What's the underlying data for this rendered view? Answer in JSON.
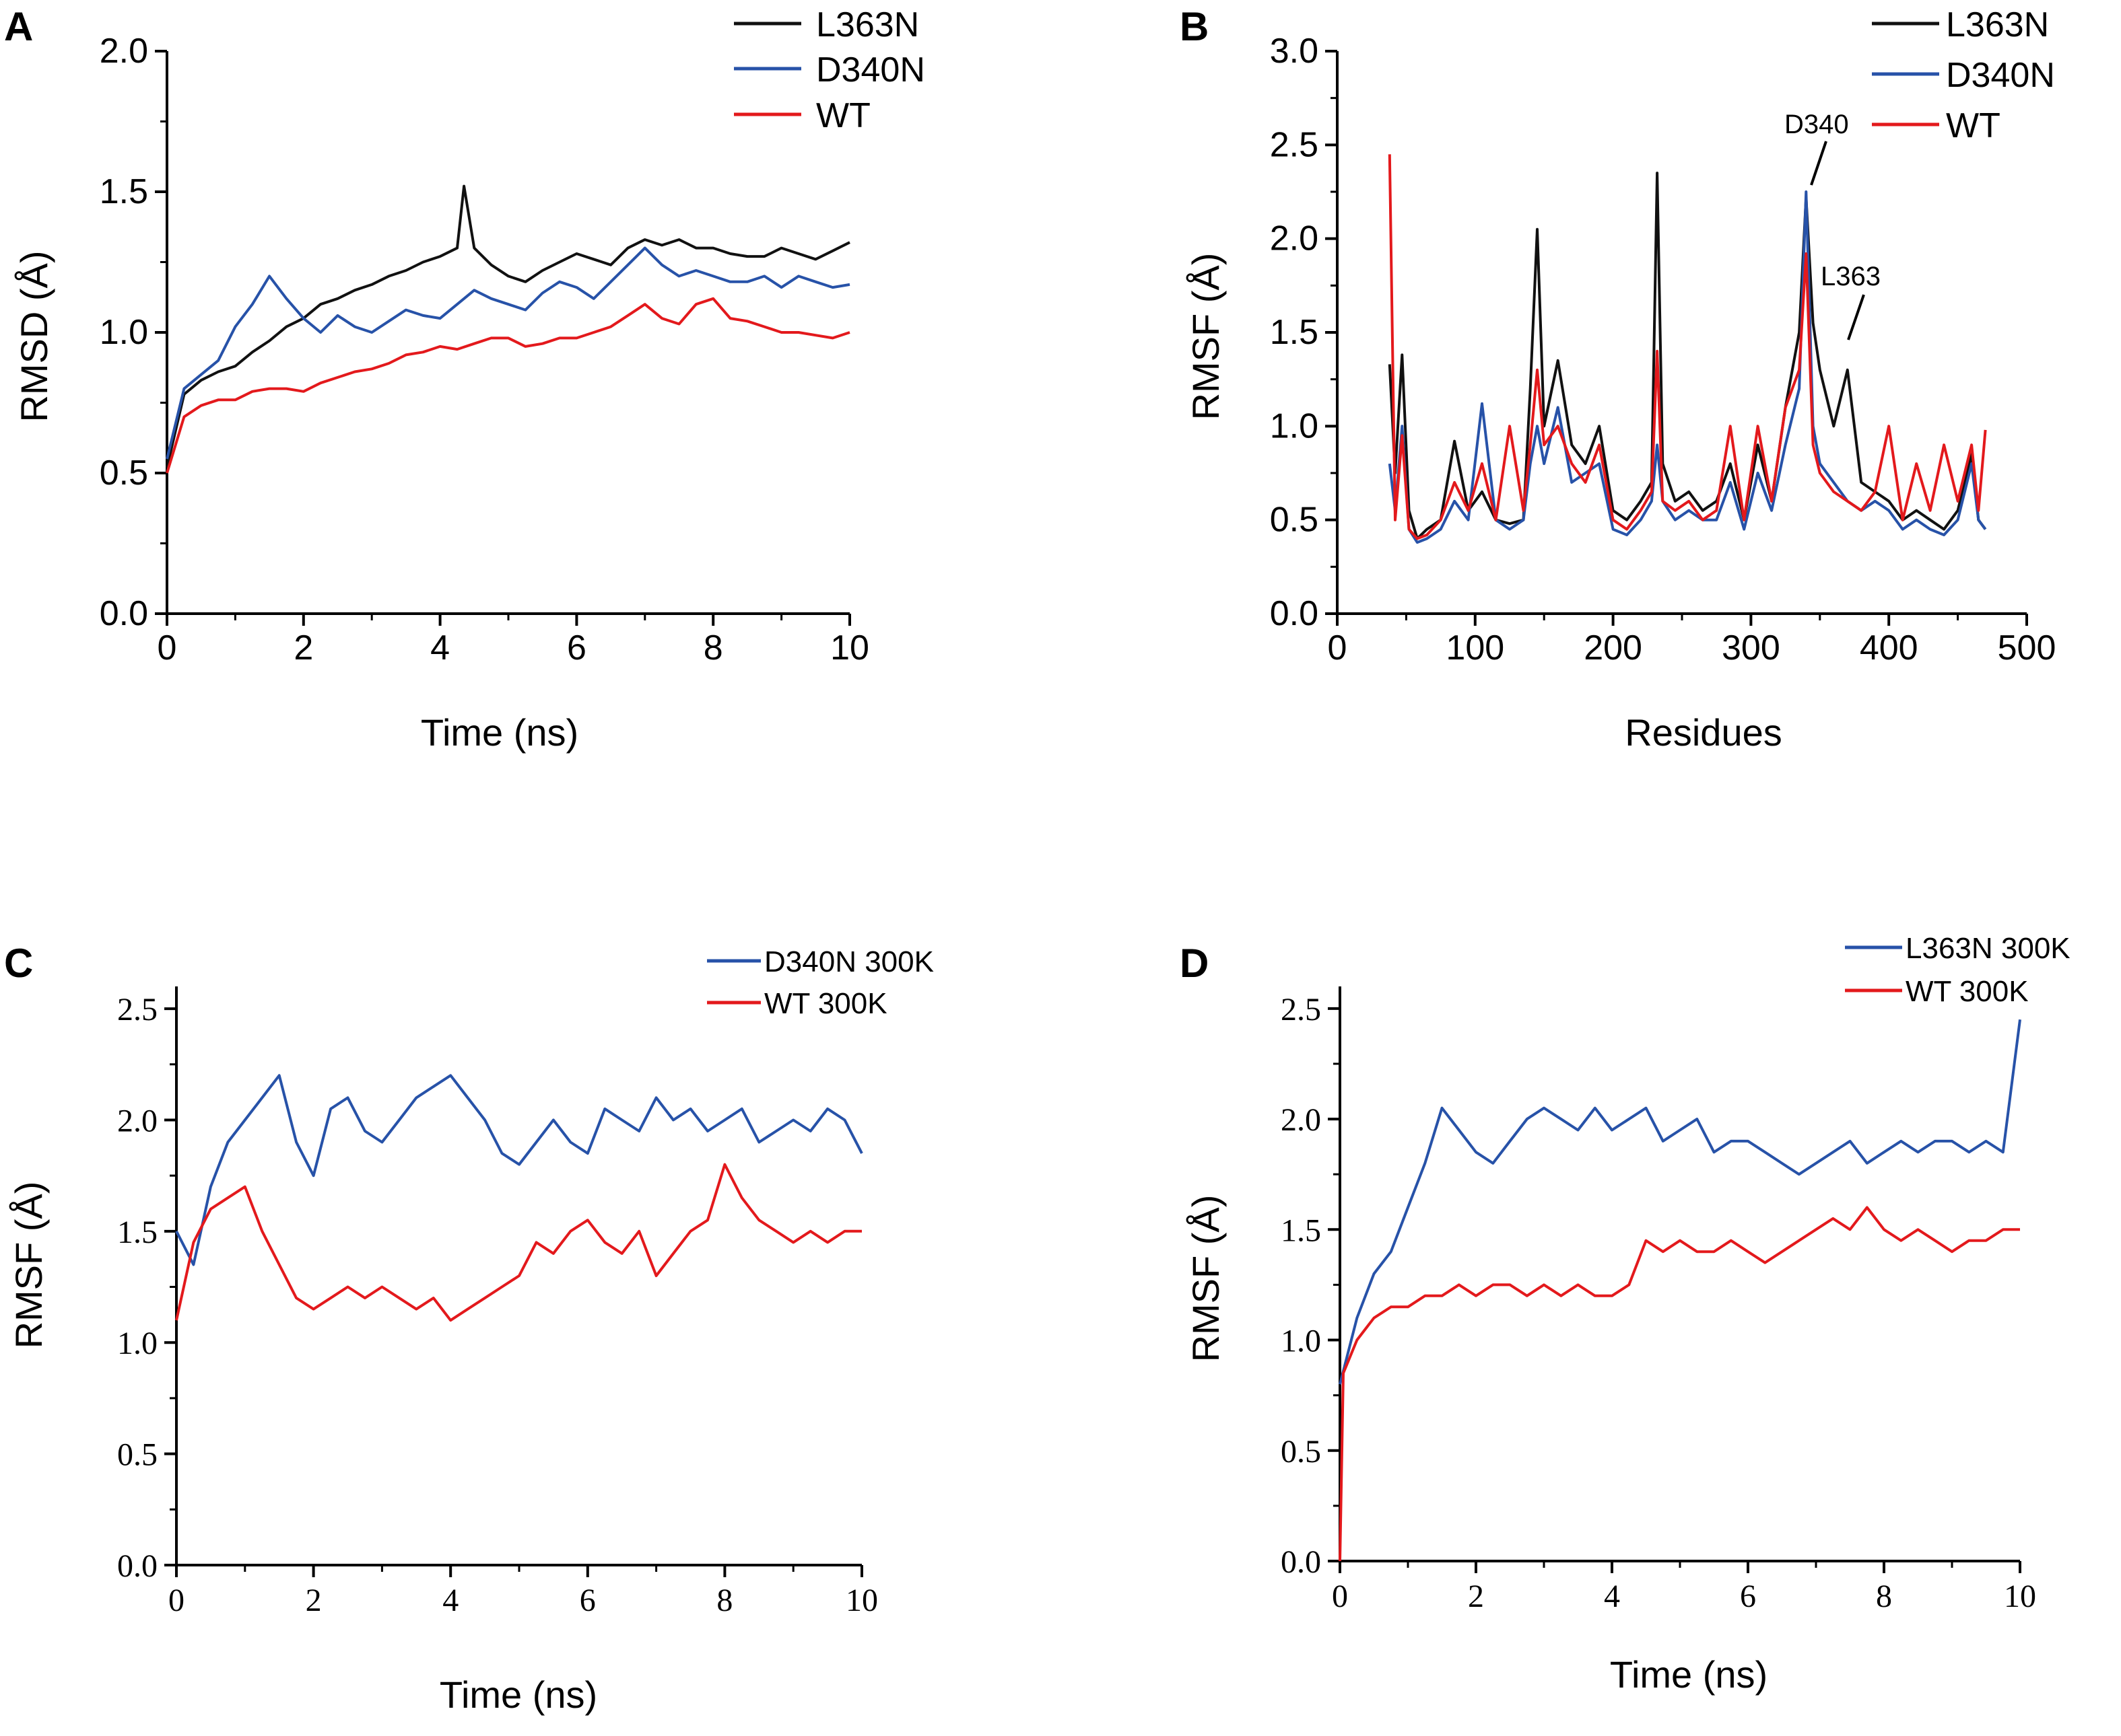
{
  "chart_data": [
    {
      "panel": "A",
      "type": "line",
      "xlabel": "Time (ns)",
      "ylabel": "RMSD (Å)",
      "xlim": [
        0,
        10
      ],
      "ylim": [
        0,
        2.0
      ],
      "xticks": [
        0,
        2,
        4,
        6,
        8,
        10
      ],
      "yticks": [
        0.0,
        0.5,
        1.0,
        1.5,
        2.0
      ],
      "legend": "top-right",
      "series": [
        {
          "name": "L363N",
          "color": "#111111",
          "x": [
            0,
            0.25,
            0.5,
            0.75,
            1.0,
            1.25,
            1.5,
            1.75,
            2.0,
            2.25,
            2.5,
            2.75,
            3.0,
            3.25,
            3.5,
            3.75,
            4.0,
            4.25,
            4.35,
            4.5,
            4.75,
            5.0,
            5.25,
            5.5,
            5.75,
            6.0,
            6.25,
            6.5,
            6.75,
            7.0,
            7.25,
            7.5,
            7.75,
            8.0,
            8.25,
            8.5,
            8.75,
            9.0,
            9.25,
            9.5,
            9.75,
            10.0
          ],
          "y": [
            0.52,
            0.78,
            0.83,
            0.86,
            0.88,
            0.93,
            0.97,
            1.02,
            1.05,
            1.1,
            1.12,
            1.15,
            1.17,
            1.2,
            1.22,
            1.25,
            1.27,
            1.3,
            1.52,
            1.3,
            1.24,
            1.2,
            1.18,
            1.22,
            1.25,
            1.28,
            1.26,
            1.24,
            1.3,
            1.33,
            1.31,
            1.33,
            1.3,
            1.3,
            1.28,
            1.27,
            1.27,
            1.3,
            1.28,
            1.26,
            1.29,
            1.32
          ]
        },
        {
          "name": "D340N",
          "color": "#2752a8",
          "x": [
            0,
            0.25,
            0.5,
            0.75,
            1.0,
            1.25,
            1.5,
            1.75,
            2.0,
            2.25,
            2.5,
            2.75,
            3.0,
            3.25,
            3.5,
            3.75,
            4.0,
            4.25,
            4.5,
            4.75,
            5.0,
            5.25,
            5.5,
            5.75,
            6.0,
            6.25,
            6.5,
            6.75,
            7.0,
            7.25,
            7.5,
            7.75,
            8.0,
            8.25,
            8.5,
            8.75,
            9.0,
            9.25,
            9.5,
            9.75,
            10.0
          ],
          "y": [
            0.55,
            0.8,
            0.85,
            0.9,
            1.02,
            1.1,
            1.2,
            1.12,
            1.05,
            1.0,
            1.06,
            1.02,
            1.0,
            1.04,
            1.08,
            1.06,
            1.05,
            1.1,
            1.15,
            1.12,
            1.1,
            1.08,
            1.14,
            1.18,
            1.16,
            1.12,
            1.18,
            1.24,
            1.3,
            1.24,
            1.2,
            1.22,
            1.2,
            1.18,
            1.18,
            1.2,
            1.16,
            1.2,
            1.18,
            1.16,
            1.17
          ]
        },
        {
          "name": "WT",
          "color": "#e3191c",
          "x": [
            0,
            0.25,
            0.5,
            0.75,
            1.0,
            1.25,
            1.5,
            1.75,
            2.0,
            2.25,
            2.5,
            2.75,
            3.0,
            3.25,
            3.5,
            3.75,
            4.0,
            4.25,
            4.5,
            4.75,
            5.0,
            5.25,
            5.5,
            5.75,
            6.0,
            6.25,
            6.5,
            6.75,
            7.0,
            7.25,
            7.5,
            7.75,
            8.0,
            8.25,
            8.5,
            8.75,
            9.0,
            9.25,
            9.5,
            9.75,
            10.0
          ],
          "y": [
            0.5,
            0.7,
            0.74,
            0.76,
            0.76,
            0.79,
            0.8,
            0.8,
            0.79,
            0.82,
            0.84,
            0.86,
            0.87,
            0.89,
            0.92,
            0.93,
            0.95,
            0.94,
            0.96,
            0.98,
            0.98,
            0.95,
            0.96,
            0.98,
            0.98,
            1.0,
            1.02,
            1.06,
            1.1,
            1.05,
            1.03,
            1.1,
            1.12,
            1.05,
            1.04,
            1.02,
            1.0,
            1.0,
            0.99,
            0.98,
            1.0
          ]
        }
      ]
    },
    {
      "panel": "B",
      "type": "line",
      "xlabel": "Residues",
      "ylabel": "RMSF (Å)",
      "xlim": [
        0,
        500
      ],
      "ylim": [
        0,
        3.0
      ],
      "xticks": [
        0,
        100,
        200,
        300,
        400,
        500
      ],
      "yticks": [
        0.0,
        0.5,
        1.0,
        1.5,
        2.0,
        2.5,
        3.0
      ],
      "legend": "top-right",
      "annotations": [
        "D340",
        "L363"
      ],
      "annotation_points": [
        [
          340,
          2.25
        ],
        [
          370,
          1.45
        ]
      ],
      "series": [
        {
          "name": "L363N",
          "color": "#111111",
          "x": [
            38,
            42,
            47,
            52,
            58,
            65,
            75,
            85,
            95,
            105,
            115,
            125,
            135,
            140,
            145,
            150,
            160,
            170,
            180,
            190,
            200,
            210,
            220,
            228,
            232,
            236,
            245,
            255,
            265,
            275,
            285,
            295,
            305,
            315,
            325,
            335,
            340,
            345,
            350,
            360,
            370,
            380,
            390,
            400,
            410,
            420,
            430,
            440,
            450,
            460,
            465,
            470
          ],
          "y": [
            1.33,
            0.75,
            1.38,
            0.55,
            0.4,
            0.45,
            0.5,
            0.92,
            0.55,
            0.65,
            0.5,
            0.48,
            0.5,
            1.2,
            2.05,
            1.0,
            1.35,
            0.9,
            0.8,
            1.0,
            0.55,
            0.5,
            0.6,
            0.7,
            2.35,
            0.8,
            0.6,
            0.65,
            0.55,
            0.6,
            0.8,
            0.5,
            0.9,
            0.6,
            1.1,
            1.5,
            2.22,
            1.55,
            1.3,
            1.0,
            1.3,
            0.7,
            0.65,
            0.6,
            0.5,
            0.55,
            0.5,
            0.45,
            0.55,
            0.85,
            0.5,
            0.45
          ]
        },
        {
          "name": "D340N",
          "color": "#2752a8",
          "x": [
            38,
            42,
            47,
            52,
            58,
            65,
            75,
            85,
            95,
            105,
            115,
            125,
            135,
            140,
            145,
            150,
            160,
            170,
            180,
            190,
            200,
            210,
            220,
            228,
            232,
            236,
            245,
            255,
            265,
            275,
            285,
            295,
            305,
            315,
            325,
            335,
            340,
            345,
            350,
            360,
            370,
            380,
            390,
            400,
            410,
            420,
            430,
            440,
            450,
            460,
            465,
            470
          ],
          "y": [
            0.8,
            0.55,
            1.0,
            0.45,
            0.38,
            0.4,
            0.45,
            0.6,
            0.5,
            1.12,
            0.5,
            0.45,
            0.5,
            0.8,
            1.0,
            0.8,
            1.1,
            0.7,
            0.75,
            0.8,
            0.45,
            0.42,
            0.5,
            0.6,
            0.9,
            0.6,
            0.5,
            0.55,
            0.5,
            0.5,
            0.7,
            0.45,
            0.75,
            0.55,
            0.9,
            1.2,
            2.25,
            1.0,
            0.8,
            0.7,
            0.6,
            0.55,
            0.6,
            0.55,
            0.45,
            0.5,
            0.45,
            0.42,
            0.5,
            0.8,
            0.5,
            0.45
          ]
        },
        {
          "name": "WT",
          "color": "#e3191c",
          "x": [
            38,
            42,
            47,
            52,
            58,
            65,
            75,
            85,
            95,
            105,
            115,
            125,
            135,
            140,
            145,
            150,
            160,
            170,
            180,
            190,
            200,
            210,
            220,
            228,
            232,
            236,
            245,
            255,
            265,
            275,
            285,
            295,
            305,
            315,
            325,
            335,
            340,
            345,
            350,
            360,
            370,
            380,
            390,
            400,
            410,
            420,
            430,
            440,
            450,
            460,
            465,
            470
          ],
          "y": [
            2.45,
            0.5,
            0.95,
            0.45,
            0.4,
            0.42,
            0.5,
            0.7,
            0.55,
            0.8,
            0.5,
            1.0,
            0.55,
            0.9,
            1.3,
            0.9,
            1.0,
            0.8,
            0.7,
            0.9,
            0.5,
            0.45,
            0.55,
            0.65,
            1.4,
            0.6,
            0.55,
            0.6,
            0.5,
            0.55,
            1.0,
            0.5,
            1.0,
            0.6,
            1.1,
            1.3,
            1.92,
            0.9,
            0.75,
            0.65,
            0.6,
            0.55,
            0.65,
            1.0,
            0.5,
            0.8,
            0.55,
            0.9,
            0.6,
            0.9,
            0.55,
            0.98
          ]
        }
      ]
    },
    {
      "panel": "C",
      "type": "line",
      "xlabel": "Time (ns)",
      "ylabel": "RMSF (Å)",
      "xlim": [
        0,
        10
      ],
      "ylim": [
        0,
        2.6
      ],
      "xticks": [
        0,
        2,
        4,
        6,
        8,
        10
      ],
      "yticks": [
        0.0,
        0.5,
        1.0,
        1.5,
        2.0,
        2.5
      ],
      "ytick_labels": [
        "0.0",
        "0.5",
        "1.0",
        "1.5",
        "2.0",
        "2.5"
      ],
      "legend": "top-right",
      "series": [
        {
          "name": "D340N 300K",
          "color": "#2752a8",
          "x": [
            0,
            0.25,
            0.5,
            0.75,
            1.0,
            1.25,
            1.5,
            1.75,
            2.0,
            2.25,
            2.5,
            2.75,
            3.0,
            3.25,
            3.5,
            3.75,
            4.0,
            4.25,
            4.5,
            4.75,
            5.0,
            5.25,
            5.5,
            5.75,
            6.0,
            6.25,
            6.5,
            6.75,
            7.0,
            7.25,
            7.5,
            7.75,
            8.0,
            8.25,
            8.5,
            8.75,
            9.0,
            9.25,
            9.5,
            9.75,
            10.0
          ],
          "y": [
            1.5,
            1.35,
            1.7,
            1.9,
            2.0,
            2.1,
            2.2,
            1.9,
            1.75,
            2.05,
            2.1,
            1.95,
            1.9,
            2.0,
            2.1,
            2.15,
            2.2,
            2.1,
            2.0,
            1.85,
            1.8,
            1.9,
            2.0,
            1.9,
            1.85,
            2.05,
            2.0,
            1.95,
            2.1,
            2.0,
            2.05,
            1.95,
            2.0,
            2.05,
            1.9,
            1.95,
            2.0,
            1.95,
            2.05,
            2.0,
            1.85
          ]
        },
        {
          "name": "WT 300K",
          "color": "#e3191c",
          "x": [
            0,
            0.25,
            0.5,
            0.75,
            1.0,
            1.25,
            1.5,
            1.75,
            2.0,
            2.25,
            2.5,
            2.75,
            3.0,
            3.25,
            3.5,
            3.75,
            4.0,
            4.25,
            4.5,
            4.75,
            5.0,
            5.25,
            5.5,
            5.75,
            6.0,
            6.25,
            6.5,
            6.75,
            7.0,
            7.25,
            7.5,
            7.75,
            8.0,
            8.25,
            8.5,
            8.75,
            9.0,
            9.25,
            9.5,
            9.75,
            10.0
          ],
          "y": [
            1.1,
            1.45,
            1.6,
            1.65,
            1.7,
            1.5,
            1.35,
            1.2,
            1.15,
            1.2,
            1.25,
            1.2,
            1.25,
            1.2,
            1.15,
            1.2,
            1.1,
            1.15,
            1.2,
            1.25,
            1.3,
            1.45,
            1.4,
            1.5,
            1.55,
            1.45,
            1.4,
            1.5,
            1.3,
            1.4,
            1.5,
            1.55,
            1.8,
            1.65,
            1.55,
            1.5,
            1.45,
            1.5,
            1.45,
            1.5,
            1.5
          ]
        }
      ]
    },
    {
      "panel": "D",
      "type": "line",
      "xlabel": "Time (ns)",
      "ylabel": "RMSF (Å)",
      "xlim": [
        0,
        10
      ],
      "ylim": [
        0,
        2.6
      ],
      "xticks": [
        0,
        2,
        4,
        6,
        8,
        10
      ],
      "yticks": [
        0.0,
        0.5,
        1.0,
        1.5,
        2.0,
        2.5
      ],
      "ytick_labels": [
        "0.0",
        "0.5",
        "1.0",
        "1.5",
        "2.0",
        "2.5"
      ],
      "legend": "top-right",
      "series": [
        {
          "name": "L363N 300K",
          "color": "#2752a8",
          "x": [
            0,
            0.25,
            0.5,
            0.75,
            1.0,
            1.25,
            1.5,
            1.75,
            2.0,
            2.25,
            2.5,
            2.75,
            3.0,
            3.25,
            3.5,
            3.75,
            4.0,
            4.25,
            4.5,
            4.75,
            5.0,
            5.25,
            5.5,
            5.75,
            6.0,
            6.25,
            6.5,
            6.75,
            7.0,
            7.25,
            7.5,
            7.75,
            8.0,
            8.25,
            8.5,
            8.75,
            9.0,
            9.25,
            9.5,
            9.75,
            10.0
          ],
          "y": [
            0.8,
            1.1,
            1.3,
            1.4,
            1.6,
            1.8,
            2.05,
            1.95,
            1.85,
            1.8,
            1.9,
            2.0,
            2.05,
            2.0,
            1.95,
            2.05,
            1.95,
            2.0,
            2.05,
            1.9,
            1.95,
            2.0,
            1.85,
            1.9,
            1.9,
            1.85,
            1.8,
            1.75,
            1.8,
            1.85,
            1.9,
            1.8,
            1.85,
            1.9,
            1.85,
            1.9,
            1.9,
            1.85,
            1.9,
            1.85,
            2.45
          ]
        },
        {
          "name": "WT 300K",
          "color": "#e3191c",
          "x": [
            0,
            0.05,
            0.25,
            0.5,
            0.75,
            1.0,
            1.25,
            1.5,
            1.75,
            2.0,
            2.25,
            2.5,
            2.75,
            3.0,
            3.25,
            3.5,
            3.75,
            4.0,
            4.25,
            4.5,
            4.75,
            5.0,
            5.25,
            5.5,
            5.75,
            6.0,
            6.25,
            6.5,
            6.75,
            7.0,
            7.25,
            7.5,
            7.75,
            8.0,
            8.25,
            8.5,
            8.75,
            9.0,
            9.25,
            9.5,
            9.75,
            10.0
          ],
          "y": [
            0.0,
            0.85,
            1.0,
            1.1,
            1.15,
            1.15,
            1.2,
            1.2,
            1.25,
            1.2,
            1.25,
            1.25,
            1.2,
            1.25,
            1.2,
            1.25,
            1.2,
            1.2,
            1.25,
            1.45,
            1.4,
            1.45,
            1.4,
            1.4,
            1.45,
            1.4,
            1.35,
            1.4,
            1.45,
            1.5,
            1.55,
            1.5,
            1.6,
            1.5,
            1.45,
            1.5,
            1.45,
            1.4,
            1.45,
            1.45,
            1.5,
            1.5
          ]
        }
      ]
    }
  ],
  "panel_labels": [
    "A",
    "B",
    "C",
    "D"
  ]
}
